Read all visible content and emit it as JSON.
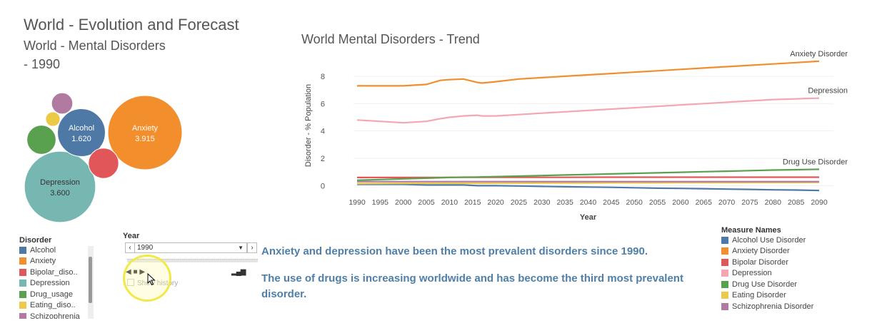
{
  "dashboard_title": "World - Evolution and Forecast",
  "bubble_chart": {
    "title": "World - Mental Disorders",
    "year_text": "- 1990"
  },
  "chart_data": [
    {
      "type": "bubble",
      "bubbles": [
        {
          "name": "Anxiety",
          "value": 3.915,
          "value_label": "3.915",
          "label": "Anxiety",
          "color": "#f28e2b"
        },
        {
          "name": "Depression",
          "value": 3.6,
          "value_label": "3.600",
          "label": "Depression",
          "color": "#76b7b2"
        },
        {
          "name": "Alcohol",
          "value": 1.62,
          "value_label": "1.620",
          "label": "Alcohol",
          "color": "#4e79a7"
        },
        {
          "name": "Drug_usage",
          "value": 0.6,
          "color": "#59a14f"
        },
        {
          "name": "Bipolar_disorder",
          "value": 0.65,
          "color": "#e15759"
        },
        {
          "name": "Eating_disorder",
          "value": 0.15,
          "color": "#edc948"
        },
        {
          "name": "Schizophrenia",
          "value": 0.32,
          "color": "#b07aa1"
        }
      ]
    },
    {
      "type": "line",
      "title": "World Mental Disorders - Trend",
      "xlabel": "Year",
      "ylabel": "Disorder - % Population",
      "x": [
        1990,
        1995,
        2000,
        2005,
        2008,
        2010,
        2013,
        2016,
        2017,
        2020,
        2025,
        2030,
        2035,
        2040,
        2045,
        2050,
        2055,
        2060,
        2065,
        2070,
        2075,
        2080,
        2085,
        2090
      ],
      "x_ticks": [
        1990,
        1995,
        2000,
        2005,
        2010,
        2015,
        2020,
        2025,
        2030,
        2035,
        2040,
        2045,
        2050,
        2055,
        2060,
        2065,
        2070,
        2075,
        2080,
        2085,
        2090
      ],
      "y_ticks": [
        0,
        2,
        4,
        6,
        8
      ],
      "ylim": [
        -0.5,
        9.3
      ],
      "series": [
        {
          "name": "Anxiety Disorder",
          "label": "Anxiety Disorder",
          "color": "#f28e2b",
          "values": [
            7.3,
            7.3,
            7.3,
            7.4,
            7.7,
            7.75,
            7.8,
            7.55,
            7.5,
            7.6,
            7.8,
            7.9,
            8.0,
            8.1,
            8.2,
            8.3,
            8.4,
            8.5,
            8.6,
            8.7,
            8.8,
            8.9,
            9.0,
            9.1
          ]
        },
        {
          "name": "Depression",
          "label": "Depression",
          "color": "#f4a6b3",
          "values": [
            4.8,
            4.7,
            4.6,
            4.7,
            4.9,
            5.0,
            5.1,
            5.15,
            5.1,
            5.1,
            5.2,
            5.3,
            5.4,
            5.5,
            5.6,
            5.7,
            5.8,
            5.9,
            6.0,
            6.1,
            6.2,
            6.3,
            6.35,
            6.4
          ]
        },
        {
          "name": "Drug Use Disorder",
          "label": "Drug Use Disorder",
          "color": "#59a14f",
          "values": [
            0.4,
            0.45,
            0.5,
            0.55,
            0.58,
            0.6,
            0.62,
            0.63,
            0.64,
            0.66,
            0.7,
            0.74,
            0.78,
            0.82,
            0.86,
            0.9,
            0.94,
            0.98,
            1.02,
            1.06,
            1.1,
            1.14,
            1.17,
            1.2
          ]
        },
        {
          "name": "Bipolar Disorder",
          "label": "",
          "color": "#e15759",
          "values": [
            0.6,
            0.6,
            0.6,
            0.6,
            0.6,
            0.61,
            0.61,
            0.61,
            0.61,
            0.61,
            0.61,
            0.61,
            0.61,
            0.62,
            0.62,
            0.62,
            0.62,
            0.62,
            0.62,
            0.62,
            0.62,
            0.62,
            0.62,
            0.62
          ]
        },
        {
          "name": "Schizophrenia Disorder",
          "label": "",
          "color": "#b07aa1",
          "values": [
            0.3,
            0.3,
            0.3,
            0.3,
            0.3,
            0.3,
            0.3,
            0.3,
            0.3,
            0.3,
            0.3,
            0.3,
            0.3,
            0.3,
            0.3,
            0.3,
            0.3,
            0.3,
            0.3,
            0.3,
            0.3,
            0.3,
            0.3,
            0.3
          ]
        },
        {
          "name": "Eating Disorder",
          "label": "",
          "color": "#edc948",
          "values": [
            0.15,
            0.16,
            0.17,
            0.17,
            0.18,
            0.18,
            0.18,
            0.18,
            0.18,
            0.19,
            0.19,
            0.2,
            0.2,
            0.2,
            0.21,
            0.21,
            0.21,
            0.22,
            0.22,
            0.22,
            0.23,
            0.23,
            0.23,
            0.24
          ]
        },
        {
          "name": "Alcohol Use Disorder",
          "label": "",
          "color": "#4e79a7",
          "values": [
            0.1,
            0.1,
            0.1,
            0.05,
            0.05,
            0.05,
            0.05,
            0.0,
            0.0,
            0.0,
            -0.02,
            -0.05,
            -0.08,
            -0.1,
            -0.12,
            -0.15,
            -0.18,
            -0.2,
            -0.22,
            -0.25,
            -0.27,
            -0.3,
            -0.32,
            -0.35
          ]
        }
      ]
    }
  ],
  "disorder_legend": {
    "title": "Disorder",
    "items": [
      {
        "label": "Alcohol",
        "color": "#4e79a7"
      },
      {
        "label": "Anxiety",
        "color": "#f28e2b"
      },
      {
        "label": "Bipolar_diso..",
        "color": "#e15759"
      },
      {
        "label": "Depression",
        "color": "#76b7b2"
      },
      {
        "label": "Drug_usage",
        "color": "#59a14f"
      },
      {
        "label": "Eating_diso..",
        "color": "#edc948"
      },
      {
        "label": "Schizophrenia",
        "color": "#b07aa1"
      }
    ]
  },
  "year_filter": {
    "label": "Year",
    "value": "1990",
    "prev": "‹",
    "next": "›",
    "show_history": "Show history"
  },
  "insights": {
    "line1": "Anxiety and depression have been the most prevalent disorders since 1990.",
    "line2": "The use of drugs is increasing worldwide and has become the third most prevalent disorder."
  },
  "measure_legend": {
    "title": "Measure Names",
    "items": [
      {
        "label": "Alcohol Use Disorder",
        "color": "#4e79a7"
      },
      {
        "label": "Anxiety Disorder",
        "color": "#f28e2b"
      },
      {
        "label": "Bipolar Disorder",
        "color": "#e15759"
      },
      {
        "label": "Depression",
        "color": "#f4a6b3"
      },
      {
        "label": "Drug Use Disorder",
        "color": "#59a14f"
      },
      {
        "label": "Eating Disorder",
        "color": "#edc948"
      },
      {
        "label": "Schizophrenia Disorder",
        "color": "#b07aa1"
      }
    ]
  }
}
